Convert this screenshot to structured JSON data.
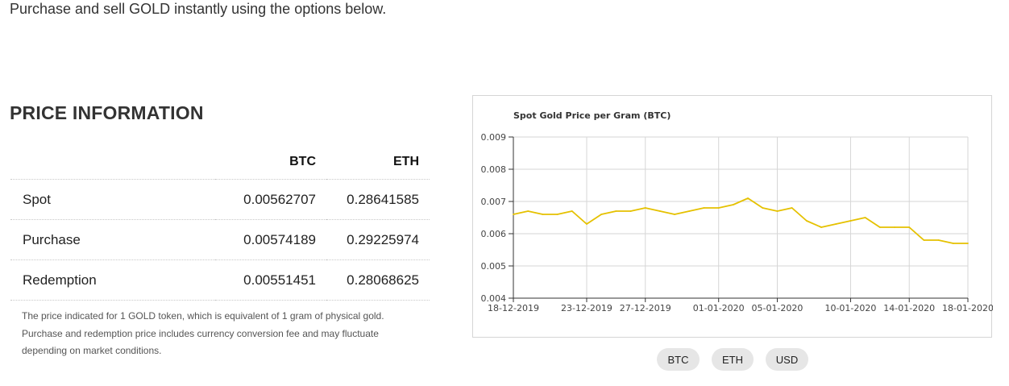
{
  "intro_text": "Purchase and sell GOLD instantly using the options below.",
  "price_info": {
    "title": "PRICE INFORMATION",
    "columns": [
      "BTC",
      "ETH"
    ],
    "rows": [
      {
        "label": "Spot",
        "btc": "0.00562707",
        "eth": "0.28641585"
      },
      {
        "label": "Purchase",
        "btc": "0.00574189",
        "eth": "0.29225974"
      },
      {
        "label": "Redemption",
        "btc": "0.00551451",
        "eth": "0.28068625"
      }
    ],
    "note": "The price indicated for 1 GOLD token, which is equivalent of 1 gram of physical gold. Purchase and redemption price includes currency conversion fee and may fluctuate depending on market conditions."
  },
  "chart_data": {
    "type": "line",
    "title": "Spot Gold Price per Gram (BTC)",
    "xlabel": "",
    "ylabel": "",
    "ylim": [
      0.004,
      0.009
    ],
    "yticks": [
      "0.009",
      "0.008",
      "0.007",
      "0.006",
      "0.005",
      "0.004"
    ],
    "xticks": [
      "18-12-2019",
      "23-12-2019",
      "27-12-2019",
      "01-01-2020",
      "05-01-2020",
      "10-01-2020",
      "14-01-2020",
      "18-01-2020"
    ],
    "grid": true,
    "line_color": "#e5c100",
    "series": [
      {
        "x": [
          "18-12-2019",
          "19-12-2019",
          "20-12-2019",
          "21-12-2019",
          "22-12-2019",
          "23-12-2019",
          "24-12-2019",
          "25-12-2019",
          "26-12-2019",
          "27-12-2019",
          "28-12-2019",
          "29-12-2019",
          "30-12-2019",
          "31-12-2019",
          "01-01-2020",
          "02-01-2020",
          "03-01-2020",
          "04-01-2020",
          "05-01-2020",
          "06-01-2020",
          "07-01-2020",
          "08-01-2020",
          "09-01-2020",
          "10-01-2020",
          "11-01-2020",
          "12-01-2020",
          "13-01-2020",
          "14-01-2020",
          "15-01-2020",
          "16-01-2020",
          "17-01-2020",
          "18-01-2020"
        ],
        "values": [
          0.0066,
          0.0067,
          0.0066,
          0.0066,
          0.0067,
          0.0063,
          0.0066,
          0.0067,
          0.0067,
          0.0068,
          0.0067,
          0.0066,
          0.0067,
          0.0068,
          0.0068,
          0.0069,
          0.0071,
          0.0068,
          0.0067,
          0.0068,
          0.0064,
          0.0062,
          0.0063,
          0.0064,
          0.0065,
          0.0062,
          0.0062,
          0.0062,
          0.0058,
          0.0058,
          0.0057,
          0.0057
        ]
      }
    ]
  },
  "currency_toggle": {
    "buttons": [
      "BTC",
      "ETH",
      "USD"
    ],
    "selected": "BTC"
  }
}
